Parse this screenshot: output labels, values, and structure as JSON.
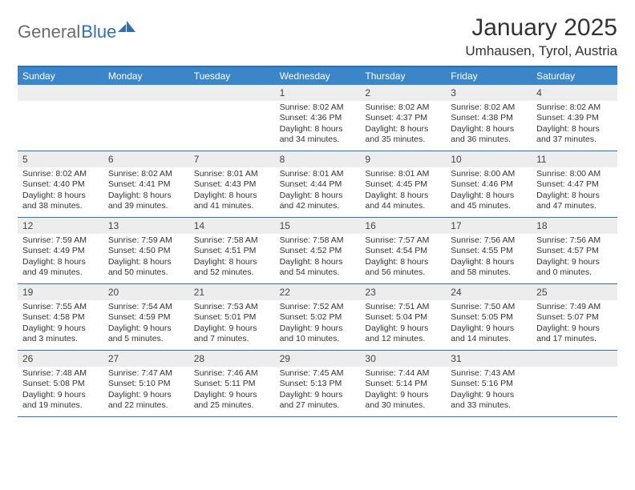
{
  "brand": {
    "text1": "General",
    "text2": "Blue"
  },
  "title": "January 2025",
  "location": "Umhausen, Tyrol, Austria",
  "colors": {
    "header_bar": "#3b86c8",
    "header_border": "#2f6fb3",
    "daynum_bg": "#ededed",
    "text": "#333333",
    "logo_gray": "#6b6b6b",
    "logo_blue": "#2f6fb3"
  },
  "dayNames": [
    "Sunday",
    "Monday",
    "Tuesday",
    "Wednesday",
    "Thursday",
    "Friday",
    "Saturday"
  ],
  "weeks": [
    [
      {
        "n": "",
        "sunrise": "",
        "sunset": "",
        "daylight": ""
      },
      {
        "n": "",
        "sunrise": "",
        "sunset": "",
        "daylight": ""
      },
      {
        "n": "",
        "sunrise": "",
        "sunset": "",
        "daylight": ""
      },
      {
        "n": "1",
        "sunrise": "Sunrise: 8:02 AM",
        "sunset": "Sunset: 4:36 PM",
        "daylight": "Daylight: 8 hours and 34 minutes."
      },
      {
        "n": "2",
        "sunrise": "Sunrise: 8:02 AM",
        "sunset": "Sunset: 4:37 PM",
        "daylight": "Daylight: 8 hours and 35 minutes."
      },
      {
        "n": "3",
        "sunrise": "Sunrise: 8:02 AM",
        "sunset": "Sunset: 4:38 PM",
        "daylight": "Daylight: 8 hours and 36 minutes."
      },
      {
        "n": "4",
        "sunrise": "Sunrise: 8:02 AM",
        "sunset": "Sunset: 4:39 PM",
        "daylight": "Daylight: 8 hours and 37 minutes."
      }
    ],
    [
      {
        "n": "5",
        "sunrise": "Sunrise: 8:02 AM",
        "sunset": "Sunset: 4:40 PM",
        "daylight": "Daylight: 8 hours and 38 minutes."
      },
      {
        "n": "6",
        "sunrise": "Sunrise: 8:02 AM",
        "sunset": "Sunset: 4:41 PM",
        "daylight": "Daylight: 8 hours and 39 minutes."
      },
      {
        "n": "7",
        "sunrise": "Sunrise: 8:01 AM",
        "sunset": "Sunset: 4:43 PM",
        "daylight": "Daylight: 8 hours and 41 minutes."
      },
      {
        "n": "8",
        "sunrise": "Sunrise: 8:01 AM",
        "sunset": "Sunset: 4:44 PM",
        "daylight": "Daylight: 8 hours and 42 minutes."
      },
      {
        "n": "9",
        "sunrise": "Sunrise: 8:01 AM",
        "sunset": "Sunset: 4:45 PM",
        "daylight": "Daylight: 8 hours and 44 minutes."
      },
      {
        "n": "10",
        "sunrise": "Sunrise: 8:00 AM",
        "sunset": "Sunset: 4:46 PM",
        "daylight": "Daylight: 8 hours and 45 minutes."
      },
      {
        "n": "11",
        "sunrise": "Sunrise: 8:00 AM",
        "sunset": "Sunset: 4:47 PM",
        "daylight": "Daylight: 8 hours and 47 minutes."
      }
    ],
    [
      {
        "n": "12",
        "sunrise": "Sunrise: 7:59 AM",
        "sunset": "Sunset: 4:49 PM",
        "daylight": "Daylight: 8 hours and 49 minutes."
      },
      {
        "n": "13",
        "sunrise": "Sunrise: 7:59 AM",
        "sunset": "Sunset: 4:50 PM",
        "daylight": "Daylight: 8 hours and 50 minutes."
      },
      {
        "n": "14",
        "sunrise": "Sunrise: 7:58 AM",
        "sunset": "Sunset: 4:51 PM",
        "daylight": "Daylight: 8 hours and 52 minutes."
      },
      {
        "n": "15",
        "sunrise": "Sunrise: 7:58 AM",
        "sunset": "Sunset: 4:52 PM",
        "daylight": "Daylight: 8 hours and 54 minutes."
      },
      {
        "n": "16",
        "sunrise": "Sunrise: 7:57 AM",
        "sunset": "Sunset: 4:54 PM",
        "daylight": "Daylight: 8 hours and 56 minutes."
      },
      {
        "n": "17",
        "sunrise": "Sunrise: 7:56 AM",
        "sunset": "Sunset: 4:55 PM",
        "daylight": "Daylight: 8 hours and 58 minutes."
      },
      {
        "n": "18",
        "sunrise": "Sunrise: 7:56 AM",
        "sunset": "Sunset: 4:57 PM",
        "daylight": "Daylight: 9 hours and 0 minutes."
      }
    ],
    [
      {
        "n": "19",
        "sunrise": "Sunrise: 7:55 AM",
        "sunset": "Sunset: 4:58 PM",
        "daylight": "Daylight: 9 hours and 3 minutes."
      },
      {
        "n": "20",
        "sunrise": "Sunrise: 7:54 AM",
        "sunset": "Sunset: 4:59 PM",
        "daylight": "Daylight: 9 hours and 5 minutes."
      },
      {
        "n": "21",
        "sunrise": "Sunrise: 7:53 AM",
        "sunset": "Sunset: 5:01 PM",
        "daylight": "Daylight: 9 hours and 7 minutes."
      },
      {
        "n": "22",
        "sunrise": "Sunrise: 7:52 AM",
        "sunset": "Sunset: 5:02 PM",
        "daylight": "Daylight: 9 hours and 10 minutes."
      },
      {
        "n": "23",
        "sunrise": "Sunrise: 7:51 AM",
        "sunset": "Sunset: 5:04 PM",
        "daylight": "Daylight: 9 hours and 12 minutes."
      },
      {
        "n": "24",
        "sunrise": "Sunrise: 7:50 AM",
        "sunset": "Sunset: 5:05 PM",
        "daylight": "Daylight: 9 hours and 14 minutes."
      },
      {
        "n": "25",
        "sunrise": "Sunrise: 7:49 AM",
        "sunset": "Sunset: 5:07 PM",
        "daylight": "Daylight: 9 hours and 17 minutes."
      }
    ],
    [
      {
        "n": "26",
        "sunrise": "Sunrise: 7:48 AM",
        "sunset": "Sunset: 5:08 PM",
        "daylight": "Daylight: 9 hours and 19 minutes."
      },
      {
        "n": "27",
        "sunrise": "Sunrise: 7:47 AM",
        "sunset": "Sunset: 5:10 PM",
        "daylight": "Daylight: 9 hours and 22 minutes."
      },
      {
        "n": "28",
        "sunrise": "Sunrise: 7:46 AM",
        "sunset": "Sunset: 5:11 PM",
        "daylight": "Daylight: 9 hours and 25 minutes."
      },
      {
        "n": "29",
        "sunrise": "Sunrise: 7:45 AM",
        "sunset": "Sunset: 5:13 PM",
        "daylight": "Daylight: 9 hours and 27 minutes."
      },
      {
        "n": "30",
        "sunrise": "Sunrise: 7:44 AM",
        "sunset": "Sunset: 5:14 PM",
        "daylight": "Daylight: 9 hours and 30 minutes."
      },
      {
        "n": "31",
        "sunrise": "Sunrise: 7:43 AM",
        "sunset": "Sunset: 5:16 PM",
        "daylight": "Daylight: 9 hours and 33 minutes."
      },
      {
        "n": "",
        "sunrise": "",
        "sunset": "",
        "daylight": ""
      }
    ]
  ]
}
